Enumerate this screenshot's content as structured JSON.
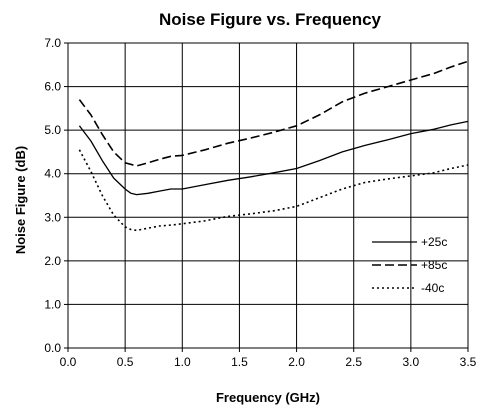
{
  "chart_data": {
    "type": "line",
    "title": "Noise Figure vs. Frequency",
    "xlabel": "Frequency (GHz)",
    "ylabel": "Noise Figure (dB)",
    "xlim": [
      0.0,
      3.5
    ],
    "ylim": [
      0.0,
      7.0
    ],
    "xticks": [
      "0.0",
      "0.5",
      "1.0",
      "1.5",
      "2.0",
      "2.5",
      "3.0",
      "3.5"
    ],
    "yticks": [
      "0.0",
      "1.0",
      "2.0",
      "3.0",
      "4.0",
      "5.0",
      "6.0",
      "7.0"
    ],
    "grid": true,
    "legend_position": "lower-right",
    "series": [
      {
        "name": "+25c",
        "line_style": "solid",
        "color": "#000000",
        "x": [
          0.1,
          0.2,
          0.3,
          0.4,
          0.5,
          0.55,
          0.6,
          0.7,
          0.8,
          0.9,
          1.0,
          1.2,
          1.4,
          1.6,
          1.8,
          2.0,
          2.2,
          2.4,
          2.6,
          2.8,
          3.0,
          3.2,
          3.35,
          3.5
        ],
        "y": [
          5.1,
          4.75,
          4.3,
          3.9,
          3.65,
          3.55,
          3.52,
          3.55,
          3.6,
          3.65,
          3.65,
          3.75,
          3.85,
          3.93,
          4.02,
          4.12,
          4.3,
          4.5,
          4.65,
          4.78,
          4.92,
          5.02,
          5.12,
          5.2
        ]
      },
      {
        "name": "+85c",
        "line_style": "dashed",
        "color": "#000000",
        "x": [
          0.1,
          0.2,
          0.3,
          0.4,
          0.5,
          0.6,
          0.7,
          0.8,
          0.9,
          1.0,
          1.2,
          1.4,
          1.6,
          1.8,
          2.0,
          2.2,
          2.4,
          2.6,
          2.8,
          3.0,
          3.2,
          3.35,
          3.5
        ],
        "y": [
          5.7,
          5.35,
          4.9,
          4.5,
          4.25,
          4.18,
          4.25,
          4.33,
          4.4,
          4.42,
          4.55,
          4.7,
          4.82,
          4.95,
          5.1,
          5.35,
          5.65,
          5.85,
          6.0,
          6.15,
          6.3,
          6.45,
          6.58
        ]
      },
      {
        "name": "-40c",
        "line_style": "dotted",
        "color": "#000000",
        "x": [
          0.1,
          0.2,
          0.3,
          0.4,
          0.5,
          0.55,
          0.6,
          0.7,
          0.8,
          0.9,
          1.0,
          1.2,
          1.4,
          1.6,
          1.8,
          2.0,
          2.2,
          2.4,
          2.6,
          2.8,
          3.0,
          3.2,
          3.35,
          3.5
        ],
        "y": [
          4.55,
          4.05,
          3.5,
          3.05,
          2.78,
          2.72,
          2.7,
          2.75,
          2.8,
          2.82,
          2.85,
          2.92,
          3.02,
          3.08,
          3.15,
          3.25,
          3.45,
          3.65,
          3.8,
          3.88,
          3.95,
          4.02,
          4.12,
          4.2
        ]
      }
    ]
  }
}
